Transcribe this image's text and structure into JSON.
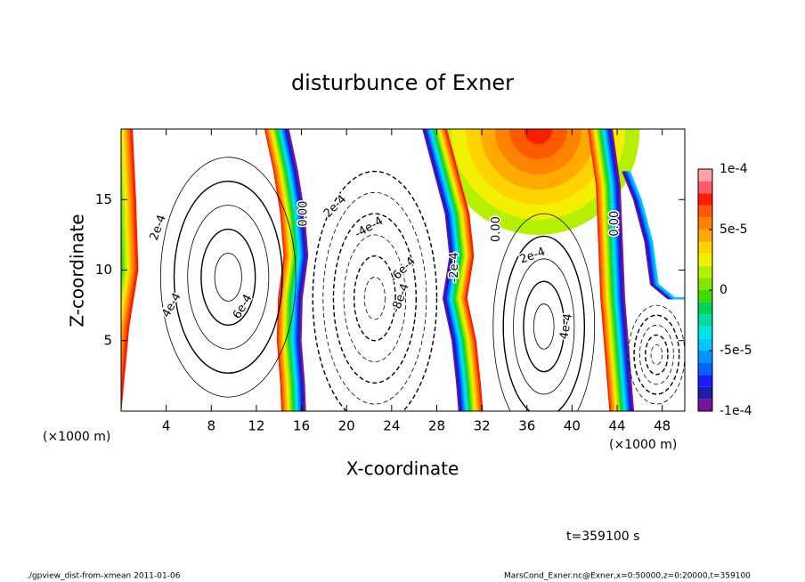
{
  "chart_data": {
    "type": "contour",
    "title": "disturbunce of Exner",
    "x_label": "X-coordinate",
    "y_label": "Z-coordinate",
    "x_unit": "(×1000 m)",
    "xlim": [
      0,
      50
    ],
    "ylim": [
      0,
      20
    ],
    "xticks": [
      4,
      8,
      12,
      16,
      20,
      24,
      28,
      32,
      36,
      40,
      44,
      48
    ],
    "yticks": [
      5,
      10,
      15
    ],
    "colorbar": {
      "levels": [
        -0.0001,
        -9e-05,
        -8e-05,
        -7e-05,
        -6e-05,
        -5e-05,
        -4e-05,
        -3e-05,
        -2e-05,
        -1e-05,
        0,
        1e-05,
        2e-05,
        3e-05,
        4e-05,
        5e-05,
        6e-05,
        7e-05,
        8e-05,
        9e-05,
        0.0001
      ],
      "colors": [
        "#78129c",
        "#1e1ea8",
        "#1a1aff",
        "#0064ff",
        "#0096ff",
        "#00c8ff",
        "#00e6e6",
        "#00dca0",
        "#00d25a",
        "#3cdc00",
        "#82e600",
        "#b4f000",
        "#f0f000",
        "#ffd200",
        "#ffaa00",
        "#ff8200",
        "#ff5a00",
        "#ff1e00",
        "#ff5a6e",
        "#ffa0aa"
      ],
      "ticks": [
        {
          "value": 0.0001,
          "label": "1e-4"
        },
        {
          "value": 5e-05,
          "label": "5e-5"
        },
        0,
        {
          "value": -5e-05,
          "label": "-5e-5"
        },
        {
          "value": -0.0001,
          "label": "-1e-4"
        }
      ]
    },
    "contour_labels": [
      "2e-4",
      "4e-4",
      "6e-4",
      "0.00",
      "2e-4",
      "-4e-4",
      "-6e-4",
      "-8e-4",
      "-2e-4",
      "0.00",
      "2e-4",
      "4e-4",
      "0.00"
    ],
    "time_label": "t=359100 s",
    "footer_left": "./gpview_dist-from-xmean  2011-01-06",
    "footer_right": "MarsCond_Exner.nc@Exner,x=0:50000,z=0:20000,t=359100"
  }
}
